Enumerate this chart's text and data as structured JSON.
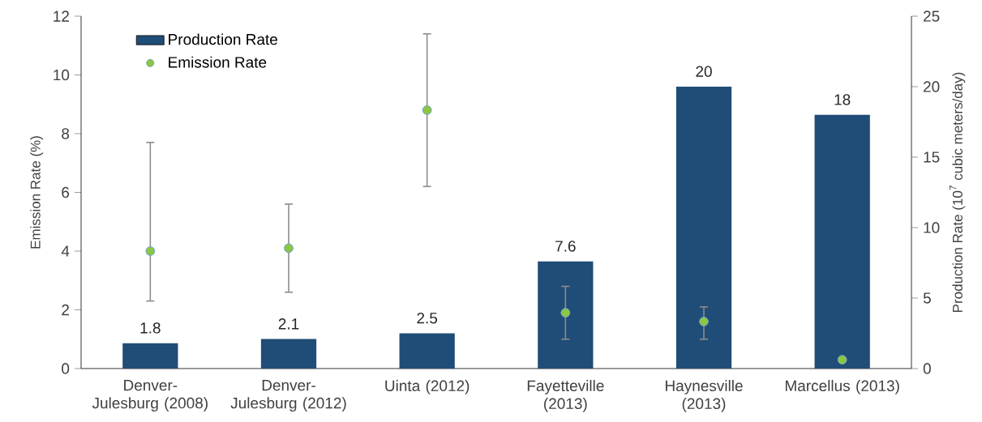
{
  "chart_data": {
    "type": "bar",
    "categories": [
      "Denver-Julesburg (2008)",
      "Denver-Julesburg (2012)",
      "Uinta (2012)",
      "Fayetteville (2013)",
      "Haynesville (2013)",
      "Marcellus (2013)"
    ],
    "ylabel": "Emission Rate (%)",
    "y2label": "Production Rate (10$^{7}$ cubic meters/day)",
    "ylim": [
      0,
      12
    ],
    "yticks": [
      0,
      2,
      4,
      6,
      8,
      10,
      12
    ],
    "y2lim": [
      0,
      25
    ],
    "y2ticks": [
      0,
      5,
      10,
      15,
      20,
      25
    ],
    "legend": "top left",
    "grid": false,
    "series": [
      {
        "name": "Production Rate",
        "axis": "y2",
        "color": "#204d77",
        "values": [
          1.8,
          2.1,
          2.5,
          7.6,
          20,
          18
        ],
        "data_labels": true
      },
      {
        "name": "Emission Rate",
        "type": "scatter",
        "axis": "y",
        "color": "#8dc63f",
        "values": [
          4.0,
          4.1,
          8.8,
          1.9,
          1.6,
          0.3
        ],
        "errors": [
          [
            2.3,
            7.7
          ],
          [
            2.6,
            5.6
          ],
          [
            6.2,
            11.4
          ],
          [
            1.0,
            2.8
          ],
          [
            1.0,
            2.1
          ],
          null
        ]
      }
    ]
  }
}
